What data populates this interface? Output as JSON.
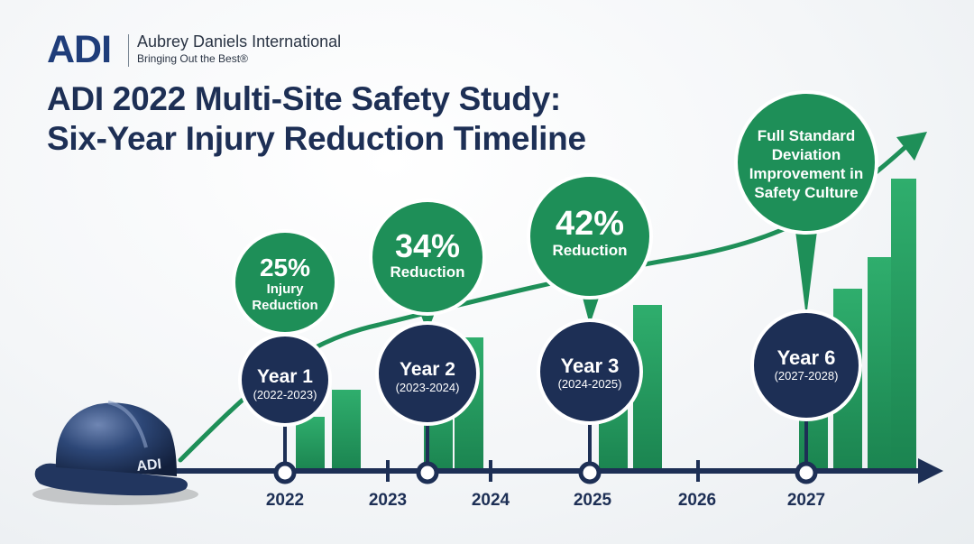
{
  "brand": {
    "logo_text": "ADI",
    "company_name": "Aubrey Daniels International",
    "tagline": "Bringing Out the Best®",
    "helmet_text": "ADI"
  },
  "title": {
    "line1": "ADI 2022 Multi-Site Safety Study:",
    "line2": "Six-Year Injury Reduction Timeline"
  },
  "axis_years": [
    "2022",
    "2023",
    "2024",
    "2025",
    "2026",
    "2027"
  ],
  "milestones": [
    {
      "label": "Year 1",
      "range": "(2022-2023)",
      "value": "25%",
      "caption_line1": "Injury",
      "caption_line2": "Reduction"
    },
    {
      "label": "Year 2",
      "range": "(2023-2024)",
      "value": "34%",
      "caption_line1": "Reduction"
    },
    {
      "label": "Year 3",
      "range": "(2024-2025)",
      "value": "42%",
      "caption_line1": "Reduction"
    },
    {
      "label": "Year 6",
      "range": "(2027-2028)",
      "caption_line1": "Full Standard",
      "caption_line2": "Deviation",
      "caption_line3": "Improvement in",
      "caption_line4": "Safety Culture"
    }
  ],
  "colors": {
    "navy": "#1d2f55",
    "green": "#1e8f58",
    "green_light": "#2ea86a",
    "axis": "#1d2f55",
    "background": "#f2f4f6"
  },
  "icons": [
    "hard-hat-icon",
    "arrow-right-icon",
    "trend-arrow-icon"
  ]
}
